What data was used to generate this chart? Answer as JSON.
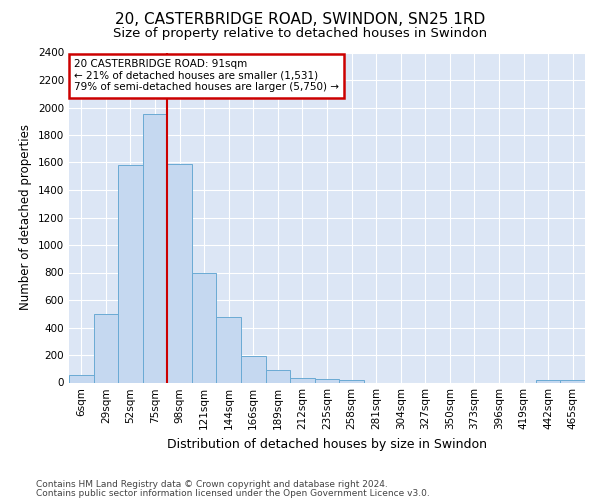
{
  "title": "20, CASTERBRIDGE ROAD, SWINDON, SN25 1RD",
  "subtitle": "Size of property relative to detached houses in Swindon",
  "xlabel": "Distribution of detached houses by size in Swindon",
  "ylabel": "Number of detached properties",
  "categories": [
    "6sqm",
    "29sqm",
    "52sqm",
    "75sqm",
    "98sqm",
    "121sqm",
    "144sqm",
    "166sqm",
    "189sqm",
    "212sqm",
    "235sqm",
    "258sqm",
    "281sqm",
    "304sqm",
    "327sqm",
    "350sqm",
    "373sqm",
    "396sqm",
    "419sqm",
    "442sqm",
    "465sqm"
  ],
  "values": [
    55,
    500,
    1580,
    1950,
    1590,
    800,
    480,
    195,
    90,
    35,
    25,
    20,
    0,
    0,
    0,
    0,
    0,
    0,
    0,
    20,
    20
  ],
  "bar_color": "#c5d8f0",
  "bar_edgecolor": "#6aaad4",
  "red_line_x": 3.5,
  "annotation_text": "20 CASTERBRIDGE ROAD: 91sqm\n← 21% of detached houses are smaller (1,531)\n79% of semi-detached houses are larger (5,750) →",
  "annotation_box_color": "#ffffff",
  "annotation_box_edgecolor": "#cc0000",
  "red_line_color": "#cc0000",
  "ylim": [
    0,
    2400
  ],
  "yticks": [
    0,
    200,
    400,
    600,
    800,
    1000,
    1200,
    1400,
    1600,
    1800,
    2000,
    2200,
    2400
  ],
  "plot_bg_color": "#dce6f5",
  "grid_color": "#ffffff",
  "footer_line1": "Contains HM Land Registry data © Crown copyright and database right 2024.",
  "footer_line2": "Contains public sector information licensed under the Open Government Licence v3.0.",
  "title_fontsize": 11,
  "subtitle_fontsize": 9.5,
  "xlabel_fontsize": 9,
  "ylabel_fontsize": 8.5,
  "tick_fontsize": 7.5,
  "footer_fontsize": 6.5
}
